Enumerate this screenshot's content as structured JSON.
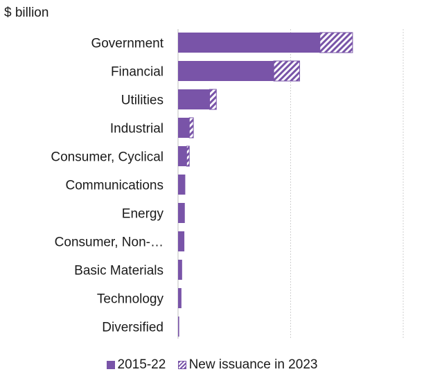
{
  "chart_data": {
    "type": "bar",
    "orientation": "horizontal",
    "stacked": true,
    "ylabel": "$ billion",
    "categories": [
      "Government",
      "Financial",
      "Utilities",
      "Industrial",
      "Consumer, Cyclical",
      "Communications",
      "Energy",
      "Consumer, Non-…",
      "Basic Materials",
      "Technology",
      "Diversified"
    ],
    "series": [
      {
        "name": "2015-22",
        "style": "solid",
        "color": "#7954a8",
        "values": [
          630,
          425,
          140,
          50,
          38,
          32,
          30,
          28,
          18,
          15,
          5
        ]
      },
      {
        "name": "New issuance in 2023",
        "style": "hatched",
        "color": "#7954a8",
        "values": [
          145,
          115,
          30,
          18,
          12,
          0,
          0,
          0,
          0,
          0,
          0
        ]
      }
    ],
    "xlim": [
      0,
      1000
    ],
    "xticks": [
      0,
      500,
      1000
    ],
    "grid": "vertical",
    "legend": "bottom"
  }
}
